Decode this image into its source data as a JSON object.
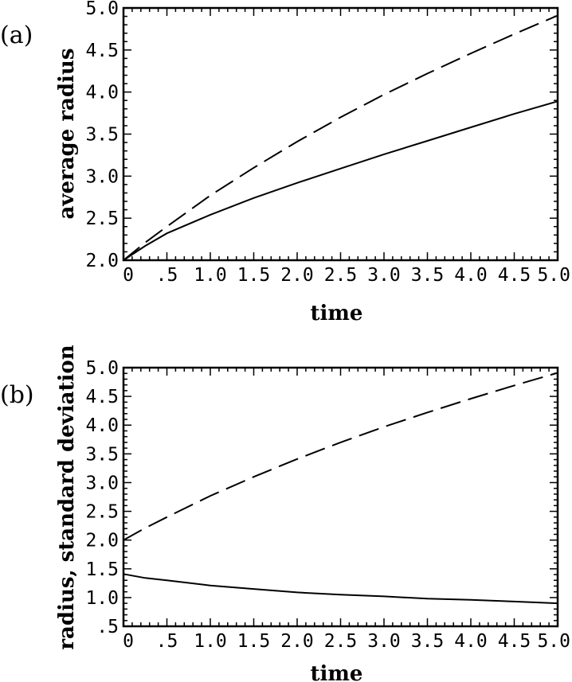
{
  "chart_data": [
    {
      "type": "line",
      "panel_label": "(a)",
      "xlabel": "time",
      "ylabel": "average radius",
      "xlim": [
        0,
        5
      ],
      "ylim": [
        2,
        5
      ],
      "x_ticks": [
        "0",
        ".5",
        "1.0",
        "1.5",
        "2.0",
        "2.5",
        "3.0",
        "3.5",
        "4.0",
        "4.5",
        "5.0"
      ],
      "y_ticks": [
        "2.0",
        "2.5",
        "3.0",
        "3.5",
        "4.0",
        "4.5",
        "5.0"
      ],
      "x": [
        0,
        0.25,
        0.5,
        1.0,
        1.5,
        2.0,
        2.5,
        3.0,
        3.5,
        4.0,
        4.5,
        5.0
      ],
      "series": [
        {
          "style": "solid",
          "values": [
            2.0,
            2.17,
            2.32,
            2.54,
            2.74,
            2.92,
            3.09,
            3.26,
            3.42,
            3.58,
            3.74,
            3.89
          ]
        },
        {
          "style": "dashed",
          "values": [
            2.0,
            2.21,
            2.4,
            2.77,
            3.1,
            3.41,
            3.7,
            3.97,
            4.22,
            4.46,
            4.69,
            4.91
          ]
        }
      ]
    },
    {
      "type": "line",
      "panel_label": "(b)",
      "xlabel": "time",
      "ylabel": "radius, standard deviation",
      "xlim": [
        0,
        5
      ],
      "ylim": [
        0.5,
        5
      ],
      "x_ticks": [
        "0",
        ".5",
        "1.0",
        "1.5",
        "2.0",
        "2.5",
        "3.0",
        "3.5",
        "4.0",
        "4.5",
        "5.0"
      ],
      "y_ticks": [
        ".5",
        "1.0",
        "1.5",
        "2.0",
        "2.5",
        "3.0",
        "3.5",
        "4.0",
        "4.5",
        "5.0"
      ],
      "x": [
        0,
        0.25,
        0.5,
        1.0,
        1.5,
        2.0,
        2.5,
        3.0,
        3.5,
        4.0,
        4.5,
        5.0
      ],
      "series": [
        {
          "style": "dashed",
          "values": [
            2.0,
            2.21,
            2.4,
            2.77,
            3.1,
            3.41,
            3.7,
            3.97,
            4.22,
            4.46,
            4.69,
            4.91
          ]
        },
        {
          "style": "solid",
          "values": [
            1.41,
            1.34,
            1.3,
            1.21,
            1.15,
            1.09,
            1.05,
            1.02,
            0.98,
            0.96,
            0.93,
            0.9
          ]
        }
      ]
    }
  ]
}
